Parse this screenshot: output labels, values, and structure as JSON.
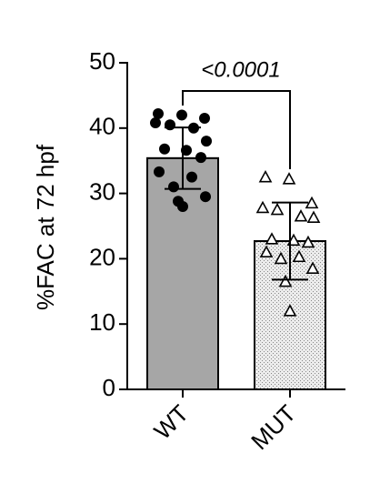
{
  "chart_data": {
    "type": "bar",
    "y_label": "%FAC at 72 hpf",
    "annotation": "<0.0001",
    "categories": [
      "WT",
      "MUT"
    ],
    "values": [
      35.4,
      22.7
    ],
    "errors": [
      4.7,
      5.9
    ],
    "colors": [
      "#a6a6a6",
      "#ececec"
    ],
    "points": [
      [
        42.2,
        42.0,
        41.5,
        40.8,
        40.5,
        40.0,
        38.0,
        36.8,
        36.6,
        35.5,
        33.3,
        32.5,
        31.0,
        29.5,
        28.8,
        28.0
      ],
      [
        32.5,
        32.2,
        28.5,
        27.8,
        27.5,
        26.5,
        26.3,
        23.0,
        22.8,
        22.5,
        21.0,
        20.3,
        20.0,
        18.5,
        16.5,
        12.0
      ]
    ],
    "ylim": [
      0,
      50
    ],
    "yticks": [
      0,
      10,
      20,
      30,
      40,
      50
    ]
  }
}
